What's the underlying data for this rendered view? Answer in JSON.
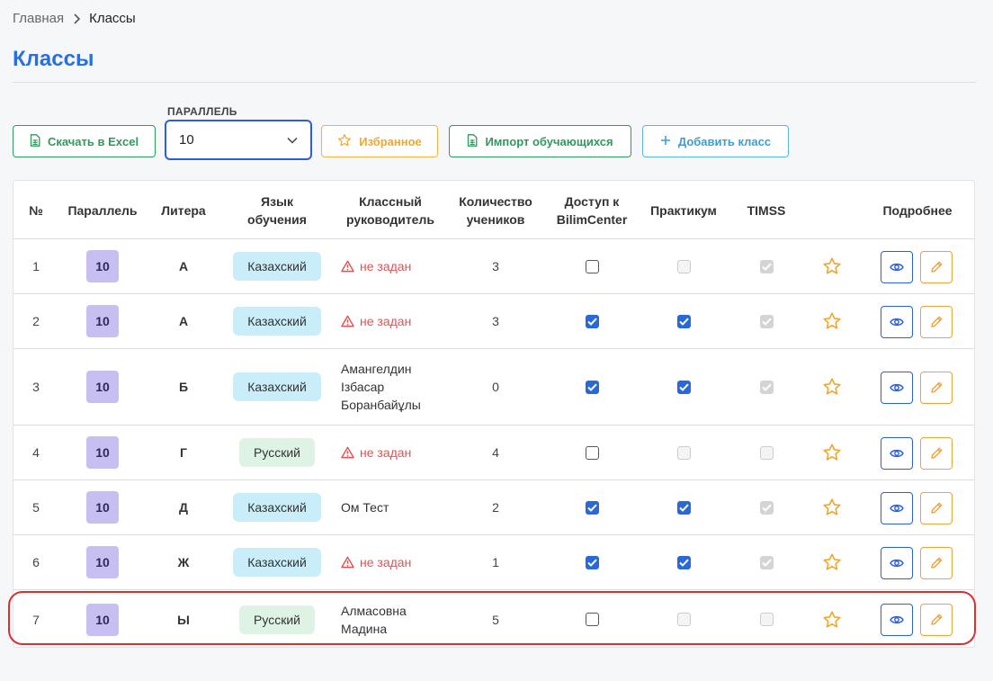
{
  "breadcrumb": {
    "home": "Главная",
    "current": "Классы"
  },
  "page_title": "Классы",
  "toolbar": {
    "excel_label": "Скачать в Excel",
    "parallel_label": "ПАРАЛЛЕЛЬ",
    "parallel_value": "10",
    "favorites_label": "Избранное",
    "import_label": "Импорт обучающихся",
    "add_label": "Добавить класс"
  },
  "table": {
    "headers": {
      "num": "№",
      "parallel": "Параллель",
      "litera": "Литера",
      "lang": [
        "Язык",
        "обучения"
      ],
      "teacher": [
        "Классный",
        "руководитель"
      ],
      "count": [
        "Количество",
        "учеников"
      ],
      "access": [
        "Доступ к",
        "BilimCenter"
      ],
      "practicum": "Практикум",
      "timss": "TIMSS",
      "details": "Подробнее"
    },
    "rows": [
      {
        "num": "1",
        "parallel": "10",
        "litera": "А",
        "lang": "Казахский",
        "lang_kind": "kz",
        "teacher": [
          "не задан"
        ],
        "teacher_missing": true,
        "count": "3",
        "access": "off",
        "practicum": "disabled",
        "timss": "disabled-on"
      },
      {
        "num": "2",
        "parallel": "10",
        "litera": "А",
        "lang": "Казахский",
        "lang_kind": "kz",
        "teacher": [
          "не задан"
        ],
        "teacher_missing": true,
        "count": "3",
        "access": "on",
        "practicum": "on",
        "timss": "disabled-on"
      },
      {
        "num": "3",
        "parallel": "10",
        "litera": "Б",
        "lang": "Казахский",
        "lang_kind": "kz",
        "teacher": [
          "Амангелдин",
          "Ізбасар",
          "Боранбайұлы"
        ],
        "teacher_missing": false,
        "count": "0",
        "access": "on",
        "practicum": "on",
        "timss": "disabled-on"
      },
      {
        "num": "4",
        "parallel": "10",
        "litera": "Г",
        "lang": "Русский",
        "lang_kind": "ru",
        "teacher": [
          "не задан"
        ],
        "teacher_missing": true,
        "count": "4",
        "access": "off",
        "practicum": "disabled",
        "timss": "disabled"
      },
      {
        "num": "5",
        "parallel": "10",
        "litera": "Д",
        "lang": "Казахский",
        "lang_kind": "kz",
        "teacher": [
          "Ом Тест"
        ],
        "teacher_missing": false,
        "count": "2",
        "access": "on",
        "practicum": "on",
        "timss": "disabled-on"
      },
      {
        "num": "6",
        "parallel": "10",
        "litera": "Ж",
        "lang": "Казахский",
        "lang_kind": "kz",
        "teacher": [
          "не задан"
        ],
        "teacher_missing": true,
        "count": "1",
        "access": "on",
        "practicum": "on",
        "timss": "disabled-on"
      },
      {
        "num": "7",
        "parallel": "10",
        "litera": "Ы",
        "lang": "Русский",
        "lang_kind": "ru",
        "teacher": [
          "Алмасовна",
          "Мадина"
        ],
        "teacher_missing": false,
        "count": "5",
        "access": "off",
        "practicum": "disabled",
        "timss": "disabled"
      }
    ]
  },
  "colors": {
    "accent": "#2a6fe0",
    "green": "#2e9a5c",
    "orange": "#f2a72e",
    "blue": "#3a9fd0",
    "missing": "#e05252",
    "highlight": "#d93030"
  },
  "icons": {
    "excel": "spreadsheet-icon",
    "favorites": "star-icon",
    "import": "spreadsheet-icon",
    "add": "plus-icon",
    "select": "chevron-down-icon",
    "missing": "warning-triangle-icon",
    "view": "eye-icon",
    "edit": "pencil-icon"
  }
}
